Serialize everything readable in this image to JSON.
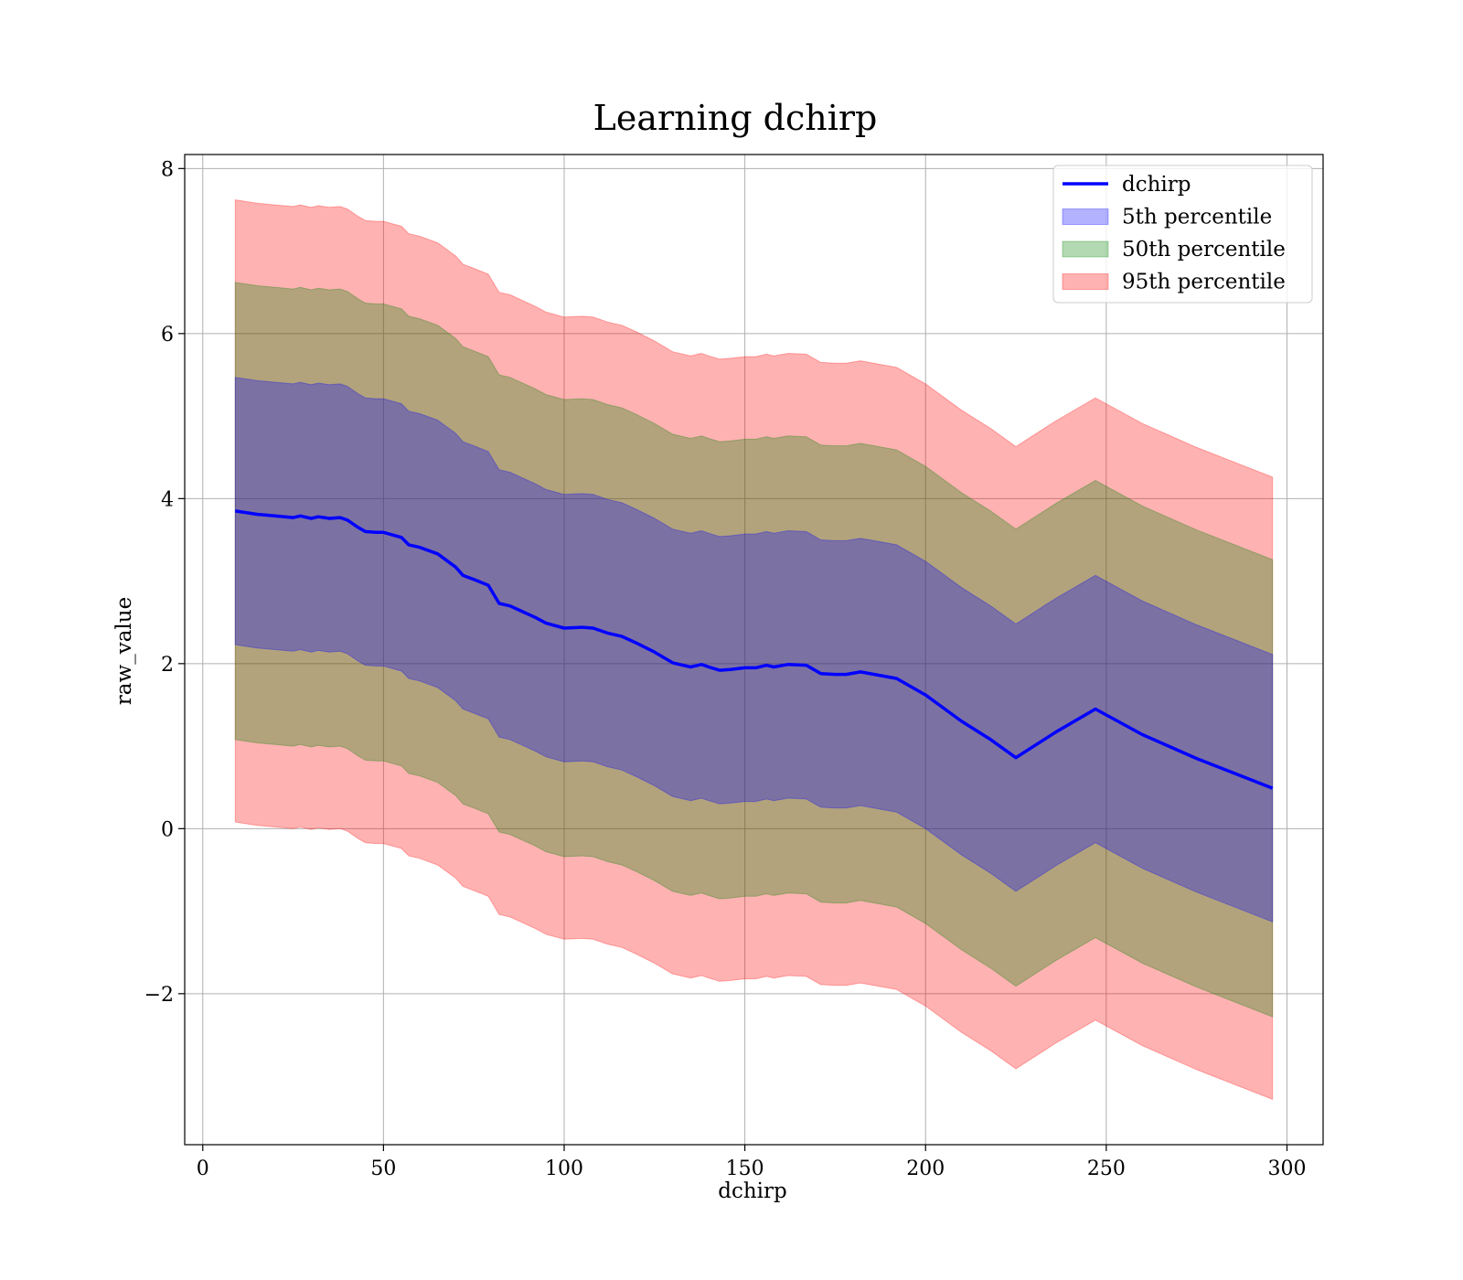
{
  "chart_data": {
    "type": "area",
    "title": "Learning dchirp",
    "xlabel": "dchirp",
    "ylabel": "raw_value",
    "xlim": [
      -5,
      310
    ],
    "ylim": [
      -3.83,
      8.17
    ],
    "xticks": [
      0,
      50,
      100,
      150,
      200,
      250,
      300
    ],
    "yticks": [
      -2,
      0,
      2,
      4,
      6,
      8
    ],
    "xtick_labels": [
      "0",
      "50",
      "100",
      "150",
      "200",
      "250",
      "300"
    ],
    "ytick_labels": [
      "−2",
      "0",
      "2",
      "4",
      "6",
      "8"
    ],
    "grid": true,
    "legend_position": "upper right",
    "x": [
      9,
      15,
      20,
      25,
      27,
      30,
      32,
      35,
      38,
      40,
      43,
      45,
      48,
      50,
      55,
      57,
      60,
      65,
      70,
      72,
      75,
      79,
      82,
      85,
      88,
      92,
      95,
      100,
      105,
      108,
      112,
      116,
      120,
      125,
      130,
      135,
      138,
      140,
      143,
      146,
      150,
      153,
      156,
      158,
      162,
      167,
      171,
      175,
      178,
      182,
      187,
      192,
      200,
      210,
      218,
      225,
      236,
      247,
      260,
      275,
      296
    ],
    "series": [
      {
        "name": "dchirp",
        "kind": "line",
        "color": "#0000ff",
        "values": [
          3.85,
          3.81,
          3.79,
          3.77,
          3.79,
          3.76,
          3.78,
          3.76,
          3.77,
          3.74,
          3.65,
          3.6,
          3.59,
          3.59,
          3.53,
          3.44,
          3.41,
          3.33,
          3.17,
          3.07,
          3.02,
          2.95,
          2.73,
          2.7,
          2.64,
          2.56,
          2.49,
          2.43,
          2.44,
          2.43,
          2.37,
          2.33,
          2.25,
          2.14,
          2.01,
          1.96,
          1.99,
          1.96,
          1.92,
          1.93,
          1.95,
          1.95,
          1.98,
          1.96,
          1.99,
          1.98,
          1.88,
          1.87,
          1.87,
          1.9,
          1.86,
          1.82,
          1.62,
          1.3,
          1.08,
          0.86,
          1.17,
          1.45,
          1.14,
          0.85,
          0.49
        ]
      },
      {
        "name": "5th percentile",
        "kind": "band",
        "color": "#0000ff",
        "half_width": 1.62
      },
      {
        "name": "50th percentile",
        "kind": "band",
        "color": "#008000",
        "half_width": 2.77
      },
      {
        "name": "95th percentile",
        "kind": "band",
        "color": "#ff0000",
        "half_width": 3.77
      }
    ]
  }
}
